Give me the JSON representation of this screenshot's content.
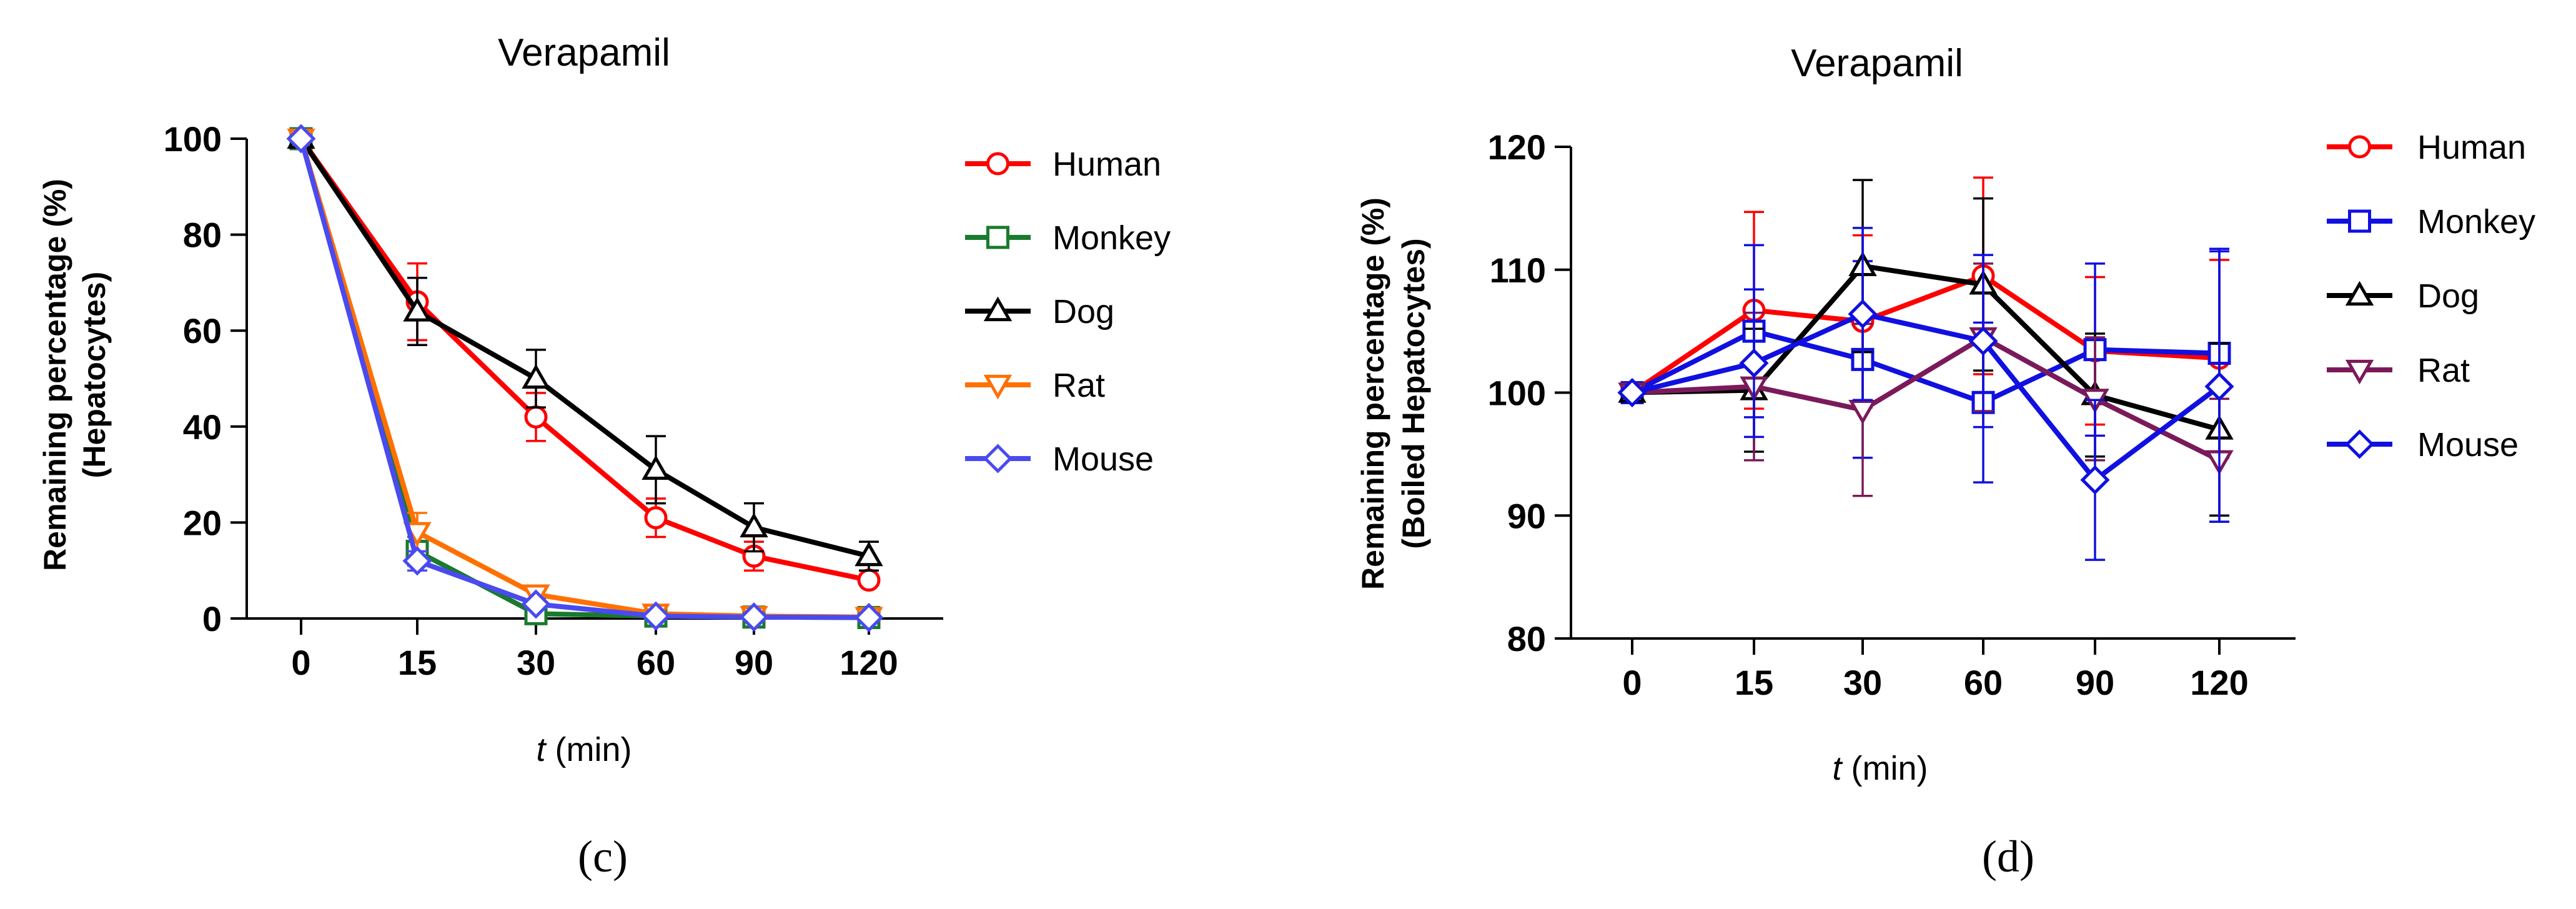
{
  "chart_data": [
    {
      "type": "line",
      "panel_label": "(c)",
      "title": "Verapamil",
      "xlabel_var": "t",
      "xlabel_unit": " (min)",
      "ylabel_line1": "Remaining percentage (%)",
      "ylabel_line2": "(Hepatocytes)",
      "categories": [
        "0",
        "15",
        "30",
        "60",
        "90",
        "120"
      ],
      "ylim": [
        0,
        100
      ],
      "yticks": [
        0,
        20,
        40,
        60,
        80,
        100
      ],
      "legend_position": "right",
      "series": [
        {
          "name": "Human",
          "color": "#ff0000",
          "marker": "circle",
          "values": [
            100,
            66,
            42,
            21,
            13,
            8
          ],
          "errors": [
            0,
            8,
            5,
            4,
            3,
            1
          ]
        },
        {
          "name": "Monkey",
          "color": "#1a7a2e",
          "marker": "square",
          "values": [
            100,
            14,
            1,
            0.5,
            0.3,
            0.2
          ],
          "errors": [
            0,
            3,
            1,
            0.5,
            0.3,
            0.2
          ]
        },
        {
          "name": "Dog",
          "color": "#000000",
          "marker": "triangle-up",
          "values": [
            100,
            64,
            50,
            31,
            19,
            13
          ],
          "errors": [
            0,
            7,
            6,
            7,
            5,
            3
          ]
        },
        {
          "name": "Rat",
          "color": "#ff7000",
          "marker": "triangle-down",
          "values": [
            100,
            18,
            5,
            1,
            0.5,
            0.3
          ],
          "errors": [
            0,
            4,
            1.5,
            1,
            0.5,
            0.3
          ]
        },
        {
          "name": "Mouse",
          "color": "#4a4af0",
          "marker": "diamond",
          "values": [
            100,
            12,
            3,
            0.5,
            0.3,
            0.2
          ],
          "errors": [
            0,
            2,
            1,
            0.5,
            0.3,
            0.2
          ]
        }
      ]
    },
    {
      "type": "line",
      "panel_label": "(d)",
      "title": "Verapamil",
      "xlabel_var": "t",
      "xlabel_unit": " (min)",
      "ylabel_line1": "Remaining percentage (%)",
      "ylabel_line2": "(Boiled Hepatocytes)",
      "categories": [
        "0",
        "15",
        "30",
        "60",
        "90",
        "120"
      ],
      "ylim": [
        80,
        120
      ],
      "yticks": [
        80,
        90,
        100,
        110,
        120
      ],
      "legend_position": "right",
      "series": [
        {
          "name": "Human",
          "color": "#ff0000",
          "marker": "circle",
          "values": [
            100,
            106.7,
            105.8,
            109.5,
            103.4,
            102.8
          ],
          "errors": [
            0,
            8,
            7,
            8,
            6,
            8
          ]
        },
        {
          "name": "Monkey",
          "color": "#1010e0",
          "marker": "square",
          "values": [
            100,
            105.0,
            102.7,
            99.2,
            103.5,
            103.2
          ],
          "errors": [
            0,
            7,
            8,
            6.5,
            7,
            8.5
          ]
        },
        {
          "name": "Dog",
          "color": "#000000",
          "marker": "triangle-up",
          "values": [
            100,
            100.2,
            110.3,
            108.8,
            99.8,
            97.0
          ],
          "errors": [
            0,
            5,
            7,
            7,
            5,
            7
          ]
        },
        {
          "name": "Rat",
          "color": "#7a1a5a",
          "marker": "triangle-down",
          "values": [
            100,
            100.5,
            98.6,
            104.5,
            99.5,
            94.5
          ],
          "errors": [
            0,
            6,
            7,
            6,
            5,
            5
          ]
        },
        {
          "name": "Mouse",
          "color": "#1010e0",
          "marker": "diamond",
          "values": [
            100,
            102.4,
            106.4,
            104.2,
            92.9,
            100.5
          ],
          "errors": [
            0,
            6,
            7,
            7,
            6.5,
            11
          ]
        }
      ]
    }
  ]
}
